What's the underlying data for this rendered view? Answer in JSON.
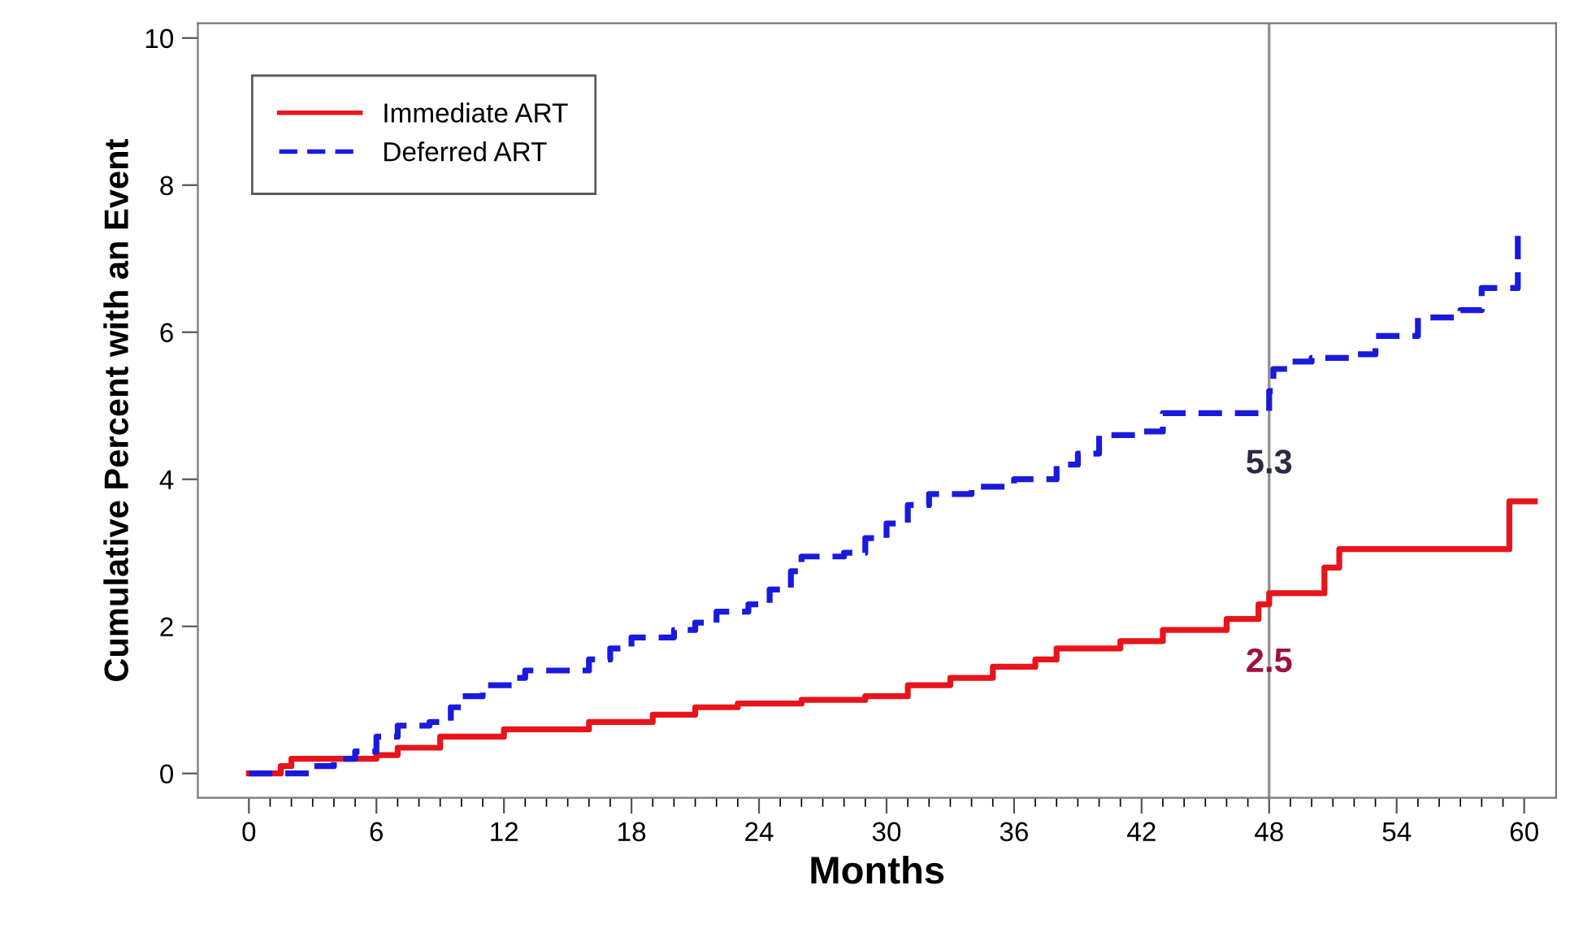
{
  "chart_data": {
    "type": "step",
    "xlabel": "Months",
    "ylabel": "Cumulative Percent with an Event",
    "xlim": [
      -2.4,
      61.5
    ],
    "ylim": [
      -0.33,
      10.2
    ],
    "xticks": [
      0,
      {
        "value": 1,
        "label": null
      },
      {
        "value": 2,
        "label": null
      },
      {
        "value": 3,
        "label": null
      },
      {
        "value": 4,
        "label": null
      },
      {
        "value": 5,
        "label": null
      },
      6,
      {
        "value": 7,
        "label": null
      },
      {
        "value": 8,
        "label": null
      },
      {
        "value": 9,
        "label": null
      },
      {
        "value": 10,
        "label": null
      },
      {
        "value": 11,
        "label": null
      },
      12,
      {
        "value": 13,
        "label": null
      },
      {
        "value": 14,
        "label": null
      },
      {
        "value": 15,
        "label": null
      },
      {
        "value": 16,
        "label": null
      },
      {
        "value": 17,
        "label": null
      },
      18,
      {
        "value": 19,
        "label": null
      },
      {
        "value": 20,
        "label": null
      },
      {
        "value": 21,
        "label": null
      },
      {
        "value": 22,
        "label": null
      },
      {
        "value": 23,
        "label": null
      },
      24,
      {
        "value": 25,
        "label": null
      },
      {
        "value": 26,
        "label": null
      },
      {
        "value": 27,
        "label": null
      },
      {
        "value": 28,
        "label": null
      },
      {
        "value": 29,
        "label": null
      },
      30,
      {
        "value": 31,
        "label": null
      },
      {
        "value": 32,
        "label": null
      },
      {
        "value": 33,
        "label": null
      },
      {
        "value": 34,
        "label": null
      },
      {
        "value": 35,
        "label": null
      },
      36,
      {
        "value": 37,
        "label": null
      },
      {
        "value": 38,
        "label": null
      },
      {
        "value": 39,
        "label": null
      },
      {
        "value": 40,
        "label": null
      },
      {
        "value": 41,
        "label": null
      },
      42,
      {
        "value": 43,
        "label": null
      },
      {
        "value": 44,
        "label": null
      },
      {
        "value": 45,
        "label": null
      },
      {
        "value": 46,
        "label": null
      },
      {
        "value": 47,
        "label": null
      },
      48,
      {
        "value": 49,
        "label": null
      },
      {
        "value": 50,
        "label": null
      },
      {
        "value": 51,
        "label": null
      },
      {
        "value": 52,
        "label": null
      },
      {
        "value": 53,
        "label": null
      },
      54,
      {
        "value": 55,
        "label": null
      },
      {
        "value": 56,
        "label": null
      },
      {
        "value": 57,
        "label": null
      },
      {
        "value": 58,
        "label": null
      },
      {
        "value": 59,
        "label": null
      },
      60
    ],
    "yticks": [
      0,
      2,
      4,
      6,
      8,
      10
    ],
    "legend": "top left",
    "grid": false,
    "series": [
      {
        "name": "Immediate ART",
        "color": "#e8141c",
        "line_style": "solid",
        "x": [
          0,
          1.5,
          2,
          6,
          7,
          9,
          12,
          16,
          19,
          21,
          23,
          26,
          29,
          31,
          33,
          35,
          37,
          38,
          41,
          43,
          46,
          47.5,
          48,
          50.6,
          51.3,
          59.3,
          60.5
        ],
        "values": [
          0,
          0.1,
          0.2,
          0.25,
          0.35,
          0.5,
          0.6,
          0.7,
          0.8,
          0.9,
          0.95,
          1.0,
          1.05,
          1.2,
          1.3,
          1.45,
          1.55,
          1.7,
          1.8,
          1.95,
          2.1,
          2.3,
          2.45,
          2.8,
          3.05,
          3.7,
          3.7
        ]
      },
      {
        "name": "Deferred ART",
        "color": "#1a1adc",
        "line_style": "dashed",
        "x": [
          0,
          2,
          3,
          4,
          5,
          6,
          7,
          8.5,
          9.5,
          10,
          11,
          12.5,
          13,
          16,
          17,
          18,
          20,
          21,
          22,
          23.5,
          24.5,
          25.5,
          26,
          28,
          29,
          30,
          31,
          32,
          34,
          36,
          38,
          39,
          40,
          42,
          43,
          48,
          48.2,
          49,
          50,
          52,
          53,
          55,
          57,
          58,
          59.5,
          59.7
        ],
        "values": [
          0,
          0,
          0.1,
          0.2,
          0.3,
          0.5,
          0.65,
          0.7,
          0.9,
          1.05,
          1.2,
          1.3,
          1.4,
          1.55,
          1.7,
          1.85,
          1.95,
          2.05,
          2.2,
          2.3,
          2.5,
          2.75,
          2.95,
          3.0,
          3.2,
          3.4,
          3.65,
          3.8,
          3.9,
          4.0,
          4.2,
          4.35,
          4.6,
          4.65,
          4.9,
          5.2,
          5.5,
          5.6,
          5.65,
          5.7,
          5.95,
          6.2,
          6.3,
          6.6,
          6.6,
          7.35
        ]
      }
    ],
    "ref_lines": [
      {
        "axis": "x",
        "value": 48,
        "label": null,
        "color": "#909090"
      }
    ],
    "annotations": [
      {
        "text": "5.3",
        "x": 48,
        "y": 4.2
      },
      {
        "text": "2.5",
        "x": 48,
        "y": 1.5
      }
    ]
  }
}
